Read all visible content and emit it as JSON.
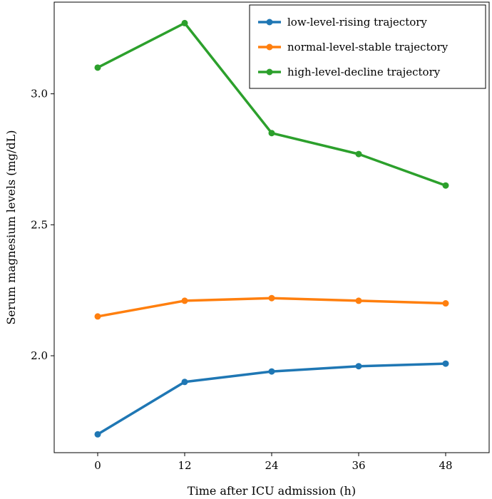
{
  "chart_data": {
    "type": "line",
    "x": [
      0,
      12,
      24,
      36,
      48
    ],
    "xticks": [
      "0",
      "12",
      "24",
      "36",
      "48"
    ],
    "xlim": [
      -6,
      54
    ],
    "yticks": [
      "2.0",
      "2.5",
      "3.0"
    ],
    "ytick_values": [
      2.0,
      2.5,
      3.0
    ],
    "ylim": [
      1.63,
      3.35
    ],
    "xlabel": "Time after ICU admission (h)",
    "ylabel": "Serum magnesium levels (mg/dL)",
    "grid": false,
    "legend_position": "top-right",
    "series": [
      {
        "name": "low-level-rising trajectory",
        "color": "#1f77b4",
        "values": [
          1.7,
          1.9,
          1.94,
          1.96,
          1.97
        ]
      },
      {
        "name": "normal-level-stable trajectory",
        "color": "#ff7f0e",
        "values": [
          2.15,
          2.21,
          2.22,
          2.21,
          2.2
        ]
      },
      {
        "name": "high-level-decline trajectory",
        "color": "#2ca02c",
        "values": [
          3.1,
          3.27,
          2.85,
          2.77,
          2.65
        ]
      }
    ]
  }
}
